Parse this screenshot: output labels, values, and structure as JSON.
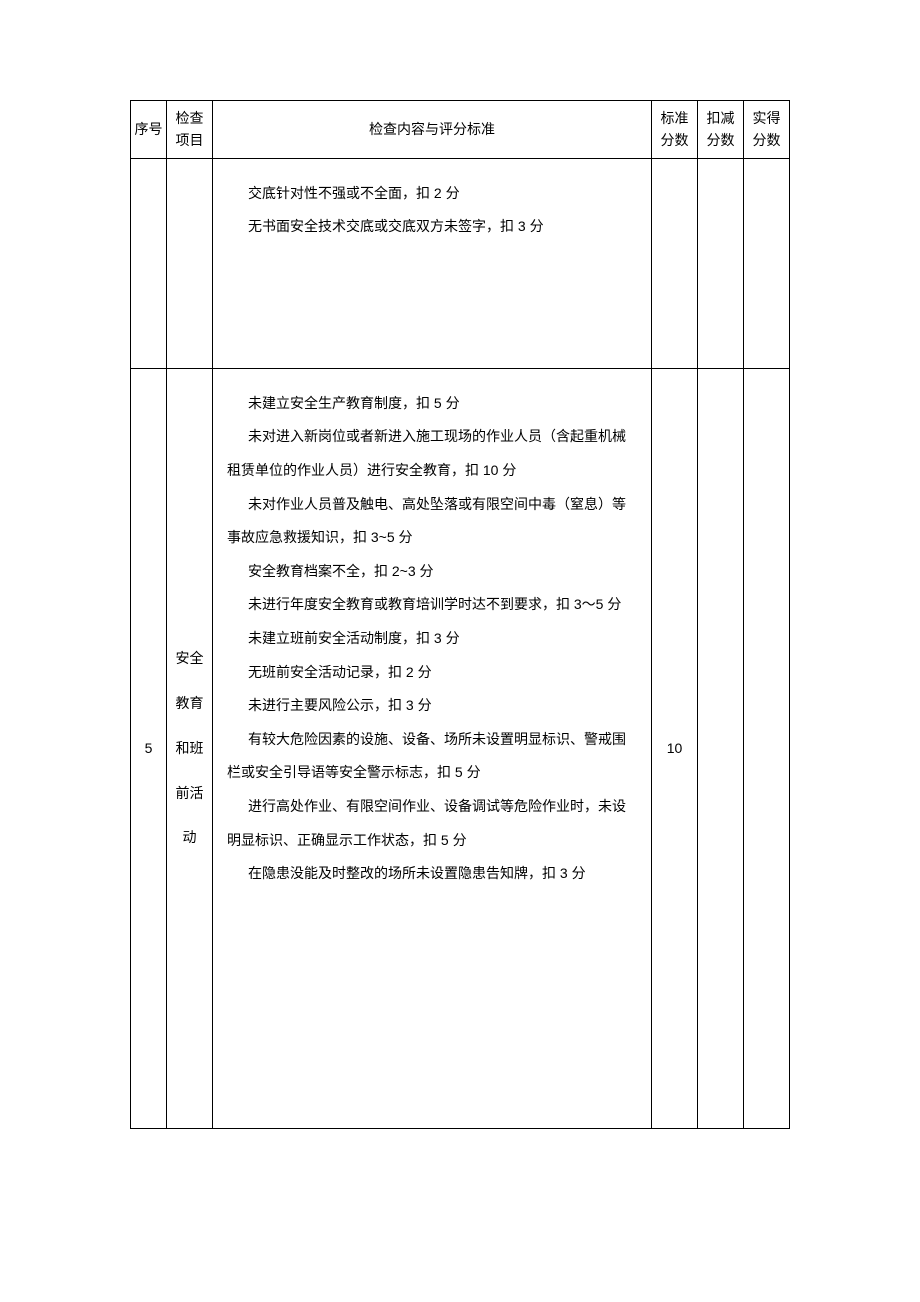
{
  "header": {
    "col_seq": "序号",
    "col_item": "检查项目",
    "col_content": "检查内容与评分标准",
    "col_score": "标准分数",
    "col_deduct": "扣减分数",
    "col_actual": "实得分数"
  },
  "rows": [
    {
      "seq": "",
      "item": "",
      "content": [
        "交底针对性不强或不全面，扣 2 分",
        "无书面安全技术交底或交底双方未签字，扣 3 分"
      ],
      "score": "",
      "deduct": "",
      "actual": ""
    },
    {
      "seq": "5",
      "item": "安全教育和班前活动",
      "content": [
        "未建立安全生产教育制度，扣 5 分",
        "未对进入新岗位或者新进入施工现场的作业人员（含起重机械租赁单位的作业人员）进行安全教育，扣 10 分",
        "未对作业人员普及触电、高处坠落或有限空间中毒（窒息）等事故应急救援知识，扣 3~5 分",
        "安全教育档案不全，扣 2~3 分",
        "未进行年度安全教育或教育培训学时达不到要求，扣 3～5 分",
        "未建立班前安全活动制度，扣 3 分",
        "无班前安全活动记录，扣 2 分",
        "未进行主要风险公示，扣 3 分",
        "有较大危险因素的设施、设备、场所未设置明显标识、警戒围栏或安全引导语等安全警示标志，扣 5 分",
        "进行高处作业、有限空间作业、设备调试等危险作业时，未设明显标识、正确显示工作状态，扣 5 分",
        "在隐患没能及时整改的场所未设置隐患告知牌，扣 3 分"
      ],
      "score": "10",
      "deduct": "",
      "actual": ""
    }
  ]
}
